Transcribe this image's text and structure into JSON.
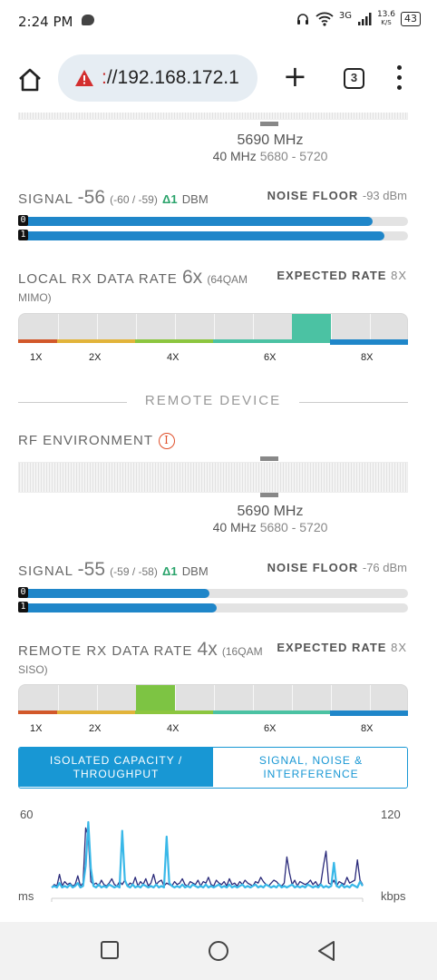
{
  "status_bar": {
    "time": "2:24 PM",
    "network": "3G",
    "speed_value": "13.6",
    "speed_unit": "K/S",
    "battery": "43"
  },
  "browser": {
    "url_scheme_tail": ":",
    "url_rest": "//192.168.172.1",
    "tab_count": "3"
  },
  "local": {
    "freq_center": "5690 MHz",
    "channel_width": "40 MHz",
    "freq_range": "5680 - 5720",
    "signal": {
      "label": "SIGNAL",
      "value": "-56",
      "chains": "(-60 / -59)",
      "delta": "Δ1",
      "unit": "dBm",
      "chain0_label": "0",
      "chain1_label": "1",
      "chain0_fill_pct": 91,
      "chain1_fill_pct": 94
    },
    "noise_floor": {
      "label": "NOISE FLOOR",
      "value": "-93 dBm"
    },
    "rx_rate": {
      "label": "LOCAL RX DATA RATE",
      "value": "6x",
      "detail": "(64QAM MIMO)",
      "expected_label": "EXPECTED RATE",
      "expected_value": "8X",
      "active_segment": 7,
      "active_color": "#4bc2a3"
    }
  },
  "remote_section_title": "REMOTE DEVICE",
  "remote": {
    "rf_label": "RF ENVIRONMENT",
    "info_glyph": "i",
    "freq_center": "5690 MHz",
    "channel_width": "40 MHz",
    "freq_range": "5680 - 5720",
    "signal": {
      "label": "SIGNAL",
      "value": "-55",
      "chains": "(-59 / -58)",
      "delta": "Δ1",
      "unit": "dBm",
      "chain0_label": "0",
      "chain1_label": "1",
      "chain0_fill_pct": 49,
      "chain1_fill_pct": 51
    },
    "noise_floor": {
      "label": "NOISE FLOOR",
      "value": "-76 dBm"
    },
    "rx_rate": {
      "label": "REMOTE RX DATA RATE",
      "value": "4x",
      "detail": "(16QAM SISO)",
      "expected_label": "EXPECTED RATE",
      "expected_value": "8X",
      "active_segment": 3,
      "active_color": "#7dc443"
    }
  },
  "rate_ticks": [
    "1X",
    "2X",
    "4X",
    "6X",
    "8X"
  ],
  "tabs": [
    {
      "label": "ISOLATED CAPACITY / THROUGHPUT",
      "active": true
    },
    {
      "label": "SIGNAL, NOISE & INTERFERENCE",
      "active": false
    }
  ],
  "chart_data": {
    "type": "line",
    "y_left_max_label": "60",
    "y_left_unit": "ms",
    "y_right_max_label": "120",
    "y_right_unit": "kbps",
    "ylim_left": [
      0,
      60
    ],
    "ylim_right": [
      0,
      120
    ],
    "series": [
      {
        "color": "#2a2a7a",
        "values": [
          5,
          7,
          6,
          14,
          6,
          9,
          7,
          8,
          6,
          7,
          13,
          6,
          8,
          46,
          40,
          9,
          7,
          8,
          6,
          10,
          7,
          6,
          8,
          11,
          7,
          6,
          9,
          7,
          10,
          6,
          8,
          7,
          12,
          6,
          9,
          7,
          11,
          6,
          8,
          14,
          7,
          9,
          10,
          6,
          8,
          7,
          6,
          9,
          7,
          8,
          11,
          7,
          6,
          9,
          8,
          7,
          10,
          6,
          9,
          8,
          12,
          7,
          6,
          10,
          8,
          7,
          9,
          6,
          11,
          7,
          8,
          6,
          9,
          7,
          10,
          8,
          7,
          6,
          9,
          8,
          12,
          9,
          7,
          6,
          8,
          10,
          9,
          7,
          6,
          8,
          26,
          15,
          7,
          10,
          6,
          9,
          8,
          7,
          8,
          10,
          7,
          9,
          6,
          8,
          20,
          30,
          8,
          7,
          10,
          6,
          9,
          8,
          7,
          12,
          8,
          9,
          10,
          24,
          10,
          7
        ]
      },
      {
        "color": "#39b8e8",
        "values": [
          5,
          6,
          5,
          8,
          5,
          6,
          5,
          7,
          5,
          6,
          8,
          5,
          6,
          20,
          50,
          18,
          6,
          5,
          7,
          5,
          6,
          5,
          7,
          6,
          5,
          6,
          5,
          44,
          10,
          6,
          5,
          7,
          5,
          6,
          5,
          7,
          6,
          5,
          6,
          5,
          7,
          5,
          6,
          5,
          40,
          8,
          6,
          5,
          6,
          5,
          7,
          5,
          6,
          5,
          7,
          6,
          5,
          6,
          5,
          7,
          5,
          6,
          5,
          6,
          7,
          5,
          6,
          5,
          7,
          5,
          6,
          5,
          6,
          7,
          5,
          6,
          5,
          6,
          7,
          5,
          6,
          5,
          7,
          6,
          5,
          6,
          5,
          7,
          5,
          6,
          5,
          6,
          7,
          5,
          6,
          5,
          6,
          5,
          7,
          6,
          5,
          6,
          5,
          7,
          5,
          6,
          5,
          6,
          22,
          6,
          5,
          7,
          5,
          6,
          5,
          7,
          6,
          5,
          9,
          6
        ]
      }
    ]
  }
}
